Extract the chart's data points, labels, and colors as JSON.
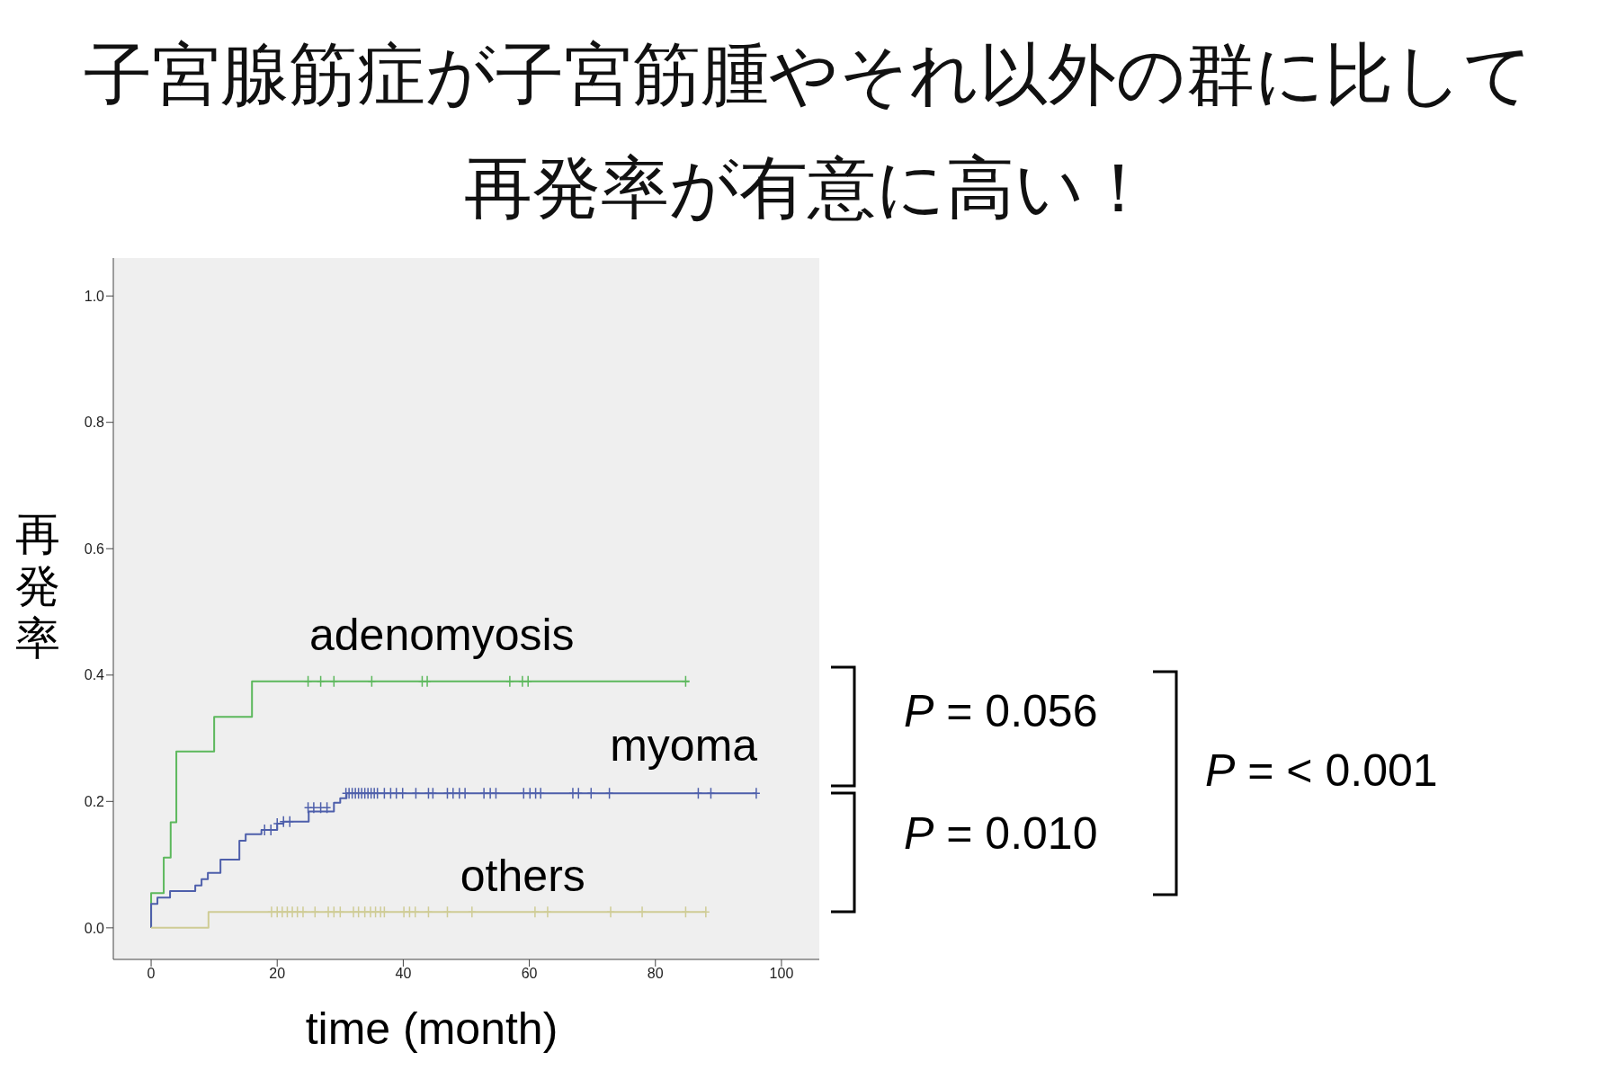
{
  "chart_data": {
    "type": "step",
    "title": "子宮腺筋症が子宮筋腫やそれ以外の群に比して再発率が有意に高い！",
    "xlabel": "time (month)",
    "ylabel": "再発率",
    "xlim": [
      -6,
      106
    ],
    "xticks": [
      0,
      20,
      40,
      60,
      80,
      100
    ],
    "ylim": [
      -0.05,
      1.06
    ],
    "yticks": [
      {
        "value": 0,
        "label": "0.0"
      },
      {
        "value": 0.2,
        "label": "0.2"
      },
      {
        "value": 0.4,
        "label": "0.4"
      },
      {
        "value": 0.6,
        "label": "0.6"
      },
      {
        "value": 0.8,
        "label": "0.8"
      },
      {
        "value": 1,
        "label": "1.0"
      }
    ],
    "grid": false,
    "marker": "none",
    "line_style": "solid",
    "series": [
      {
        "name": "adenomyosis",
        "color": "#5cb85c",
        "x": [
          0,
          0,
          2,
          3.1,
          4,
          10,
          16,
          85.4
        ],
        "values": [
          0,
          0.055,
          0.111,
          0.167,
          0.279,
          0.334,
          0.39,
          0.39
        ]
      },
      {
        "name": "myoma",
        "color": "#4e5fab",
        "x": [
          0,
          0,
          1,
          3,
          7,
          8,
          9,
          11,
          14,
          15,
          17.5,
          20,
          21,
          25,
          29,
          30,
          31,
          96
        ],
        "values": [
          0,
          0.038,
          0.048,
          0.058,
          0.067,
          0.077,
          0.087,
          0.108,
          0.138,
          0.148,
          0.155,
          0.165,
          0.168,
          0.184,
          0.198,
          0.205,
          0.213,
          0.213
        ]
      },
      {
        "name": "others",
        "color": "#cfcc95",
        "x": [
          0,
          9.1,
          88
        ],
        "values": [
          0,
          0.025,
          0.025
        ]
      },
      {
        "type": "scatter",
        "marker": "cross",
        "color": "#5cb85c",
        "x": [
          24.9,
          26.9,
          29,
          35,
          43,
          43.8,
          56.9,
          58.9,
          59.8,
          84.8
        ],
        "values": [
          0.39,
          0.39,
          0.39,
          0.39,
          0.39,
          0.39,
          0.39,
          0.39,
          0.39,
          0.39
        ]
      },
      {
        "type": "scatter",
        "marker": "cross",
        "color": "#4e5fab",
        "x": [
          18,
          19,
          20,
          21,
          22,
          24.9,
          25.8,
          26.9,
          27.9,
          30.9,
          31.4,
          31.9,
          32.4,
          32.9,
          33.4,
          33.9,
          34.4,
          34.9,
          35.4,
          35.9,
          37,
          38,
          38.9,
          39.9,
          42,
          44,
          44.7,
          47,
          47.9,
          48.9,
          49.8,
          52.8,
          53.8,
          54.7,
          59.1,
          60.1,
          61,
          61.8,
          66.9,
          67.8,
          69.8,
          72.7,
          86.8,
          88.8,
          96
        ],
        "values": [
          0.155,
          0.155,
          0.165,
          0.168,
          0.168,
          0.19,
          0.19,
          0.19,
          0.19,
          0.213,
          0.213,
          0.213,
          0.213,
          0.213,
          0.213,
          0.213,
          0.213,
          0.213,
          0.213,
          0.213,
          0.213,
          0.213,
          0.213,
          0.213,
          0.213,
          0.213,
          0.213,
          0.213,
          0.213,
          0.213,
          0.213,
          0.213,
          0.213,
          0.213,
          0.213,
          0.213,
          0.213,
          0.213,
          0.213,
          0.213,
          0.213,
          0.213,
          0.213,
          0.213,
          0.213
        ]
      },
      {
        "type": "scatter",
        "marker": "cross",
        "color": "#cfcc95",
        "x": [
          19.1,
          20,
          20.8,
          21.6,
          22.4,
          23.2,
          24.1,
          26,
          28.1,
          29,
          30,
          32.1,
          32.9,
          33.9,
          34.8,
          35.6,
          36.4,
          37,
          40.1,
          41,
          41.9,
          44,
          47,
          50.9,
          60.9,
          62.9,
          72.9,
          77.9,
          84.8,
          88
        ],
        "values": [
          0.025,
          0.025,
          0.025,
          0.025,
          0.025,
          0.025,
          0.025,
          0.025,
          0.025,
          0.025,
          0.025,
          0.025,
          0.025,
          0.025,
          0.025,
          0.025,
          0.025,
          0.025,
          0.025,
          0.025,
          0.025,
          0.025,
          0.025,
          0.025,
          0.025,
          0.025,
          0.025,
          0.025,
          0.025,
          0.025
        ]
      }
    ],
    "annotations": [
      "P = 0.056",
      "P = 0.010",
      "P = < 0.001"
    ]
  }
}
